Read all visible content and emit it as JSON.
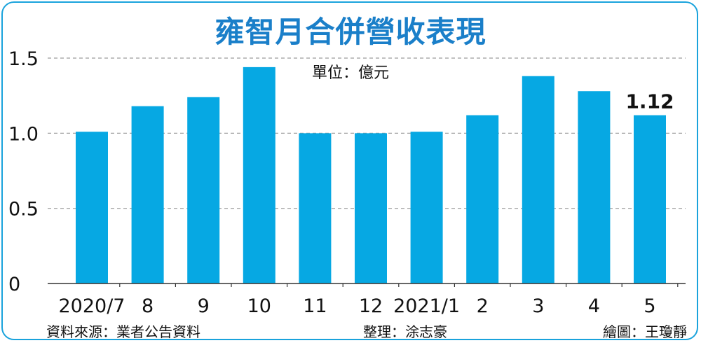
{
  "title": "雍智月合併營收表現",
  "unit_label": "單位：億元",
  "footer": {
    "source": "資料來源：業者公告資料",
    "editor": "整理：涂志豪",
    "artist": "繪圖：王瓊靜"
  },
  "colors": {
    "bar": "#06a8e3",
    "title": "#1a7fc9",
    "frame": "#1aa3dc",
    "grid": "#9a9a9a"
  },
  "chart_data": {
    "type": "bar",
    "categories": [
      "2020/7",
      "8",
      "9",
      "10",
      "11",
      "12",
      "2021/1",
      "2",
      "3",
      "4",
      "5"
    ],
    "values": [
      1.01,
      1.18,
      1.24,
      1.44,
      1.0,
      1.0,
      1.01,
      1.12,
      1.38,
      1.28,
      1.12
    ],
    "ylim": [
      0,
      1.5
    ],
    "yticks": [
      "0",
      "0.5",
      "1.0",
      "1.5"
    ],
    "ytick_values": [
      0,
      0.5,
      1.0,
      1.5
    ],
    "grid": true,
    "data_labels": [
      {
        "category": "5",
        "text": "1.12"
      }
    ]
  }
}
